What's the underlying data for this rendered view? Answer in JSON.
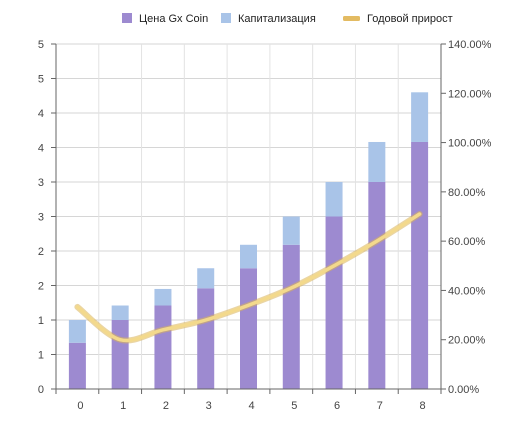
{
  "chart_data": {
    "type": "bar",
    "stacked": true,
    "categories": [
      "0",
      "1",
      "2",
      "3",
      "4",
      "5",
      "6",
      "7",
      "8"
    ],
    "series": [
      {
        "name": "Цена Gx Coin",
        "kind": "bar",
        "axis": "left",
        "color": "#9d8ad0",
        "values": [
          0.67,
          1.0,
          1.21,
          1.46,
          1.75,
          2.09,
          2.5,
          3.0,
          3.58
        ]
      },
      {
        "name": "Капитализация",
        "kind": "bar",
        "axis": "left",
        "color": "#a9c4e8",
        "values": [
          0.33,
          0.21,
          0.24,
          0.29,
          0.34,
          0.41,
          0.5,
          0.58,
          0.72
        ]
      },
      {
        "name": "Годовой прирост",
        "kind": "line",
        "axis": "right",
        "color": "#f3d98c",
        "values": [
          33.3,
          20.0,
          24.0,
          28.0,
          34.0,
          41.0,
          50.0,
          60.0,
          71.0
        ]
      }
    ],
    "left_axis": {
      "ylim": [
        0,
        5
      ],
      "tick_labels": [
        "0",
        "1",
        "1",
        "2",
        "2",
        "3",
        "3",
        "4",
        "4",
        "5",
        "5"
      ]
    },
    "right_axis": {
      "ylim": [
        0,
        140
      ],
      "tick_labels": [
        "0.00%",
        "20.00%",
        "40.00%",
        "60.00%",
        "80.00%",
        "100.00%",
        "120.00%",
        "140.00%"
      ]
    },
    "grid": true,
    "legend_position": "top"
  }
}
